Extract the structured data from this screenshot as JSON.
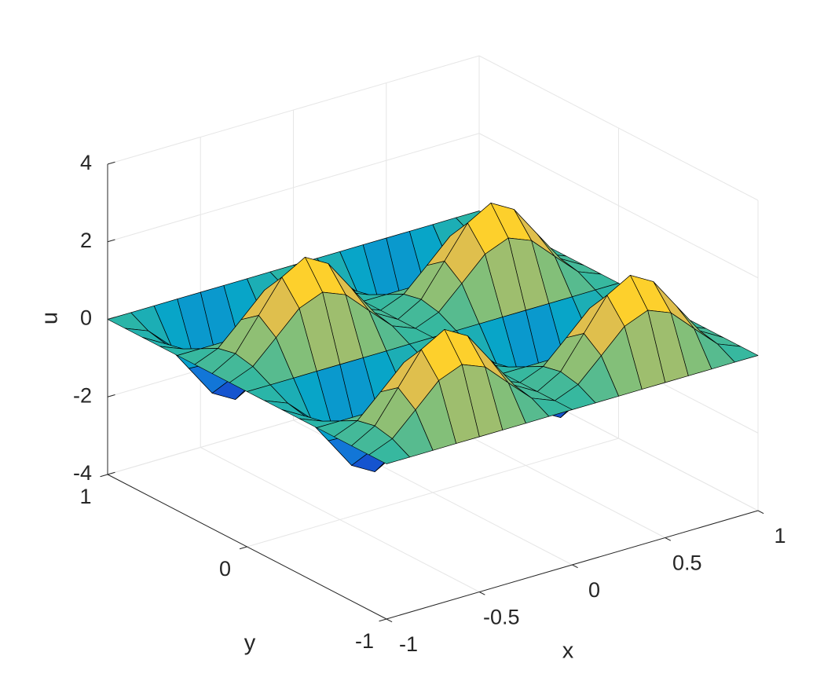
{
  "chart_data": {
    "type": "surface",
    "xlabel": "x",
    "ylabel": "y",
    "zlabel": "u",
    "x": [
      -1,
      -0.875,
      -0.75,
      -0.625,
      -0.5,
      -0.375,
      -0.25,
      -0.125,
      0,
      0.125,
      0.25,
      0.375,
      0.5,
      0.625,
      0.75,
      0.875,
      1
    ],
    "y": [
      -1,
      -0.875,
      -0.75,
      -0.625,
      -0.5,
      -0.375,
      -0.25,
      -0.125,
      0,
      0.125,
      0.25,
      0.375,
      0.5,
      0.625,
      0.75,
      0.875,
      1
    ],
    "z": [
      [
        0,
        0,
        0,
        0,
        0,
        0,
        0,
        0,
        0,
        0,
        0,
        0,
        0,
        0,
        0,
        0,
        0
      ],
      [
        0,
        0.24,
        0.81,
        1.39,
        1.63,
        1.39,
        0.81,
        0.24,
        0,
        0.24,
        0.81,
        1.39,
        1.63,
        1.39,
        0.81,
        0.24,
        0
      ],
      [
        0,
        0.34,
        1.15,
        1.96,
        2.3,
        1.96,
        1.15,
        0.34,
        0,
        0.34,
        1.15,
        1.96,
        2.3,
        1.96,
        1.15,
        0.34,
        0
      ],
      [
        0,
        0.24,
        0.81,
        1.39,
        1.63,
        1.39,
        0.81,
        0.24,
        0,
        0.24,
        0.81,
        1.39,
        1.63,
        1.39,
        0.81,
        0.24,
        0
      ],
      [
        0,
        0,
        0,
        0,
        0,
        0,
        0,
        0,
        0,
        0,
        0,
        0,
        0,
        0,
        0,
        0,
        0
      ],
      [
        0,
        -0.24,
        -0.81,
        -1.39,
        -1.63,
        -1.39,
        -0.81,
        -0.24,
        0,
        -0.24,
        -0.81,
        -1.39,
        -1.63,
        -1.39,
        -0.81,
        -0.24,
        0
      ],
      [
        0,
        -0.34,
        -1.15,
        -1.96,
        -2.3,
        -1.96,
        -1.15,
        -0.34,
        0,
        -0.34,
        -1.15,
        -1.96,
        -2.3,
        -1.96,
        -1.15,
        -0.34,
        0
      ],
      [
        0,
        -0.24,
        -0.81,
        -1.39,
        -1.63,
        -1.39,
        -0.81,
        -0.24,
        0,
        -0.24,
        -0.81,
        -1.39,
        -1.63,
        -1.39,
        -0.81,
        -0.24,
        0
      ],
      [
        0,
        0,
        0,
        0,
        0,
        0,
        0,
        0,
        0,
        0,
        0,
        0,
        0,
        0,
        0,
        0,
        0
      ],
      [
        0,
        0.24,
        0.81,
        1.39,
        1.63,
        1.39,
        0.81,
        0.24,
        0,
        0.24,
        0.81,
        1.39,
        1.63,
        1.39,
        0.81,
        0.24,
        0
      ],
      [
        0,
        0.34,
        1.15,
        1.96,
        2.3,
        1.96,
        1.15,
        0.34,
        0,
        0.34,
        1.15,
        1.96,
        2.3,
        1.96,
        1.15,
        0.34,
        0
      ],
      [
        0,
        0.24,
        0.81,
        1.39,
        1.63,
        1.39,
        0.81,
        0.24,
        0,
        0.24,
        0.81,
        1.39,
        1.63,
        1.39,
        0.81,
        0.24,
        0
      ],
      [
        0,
        0,
        0,
        0,
        0,
        0,
        0,
        0,
        0,
        0,
        0,
        0,
        0,
        0,
        0,
        0,
        0
      ],
      [
        0,
        -0.24,
        -0.81,
        -1.39,
        -1.63,
        -1.39,
        -0.81,
        -0.24,
        0,
        -0.24,
        -0.81,
        -1.39,
        -1.63,
        -1.39,
        -0.81,
        -0.24,
        0
      ],
      [
        0,
        -0.34,
        -1.15,
        -1.96,
        -2.3,
        -1.96,
        -1.15,
        -0.34,
        0,
        -0.34,
        -1.15,
        -1.96,
        -2.3,
        -1.96,
        -1.15,
        -0.34,
        0
      ],
      [
        0,
        -0.24,
        -0.81,
        -1.39,
        -1.63,
        -1.39,
        -0.81,
        -0.24,
        0,
        -0.24,
        -0.81,
        -1.39,
        -1.63,
        -1.39,
        -0.81,
        -0.24,
        0
      ],
      [
        0,
        0,
        0,
        0,
        0,
        0,
        0,
        0,
        0,
        0,
        0,
        0,
        0,
        0,
        0,
        0,
        0
      ]
    ],
    "xlim": [
      -1,
      1
    ],
    "ylim": [
      -1,
      1
    ],
    "zlim": [
      -4,
      4
    ],
    "xticks": [
      -1,
      -0.5,
      0,
      0.5,
      1
    ],
    "yticks": [
      -1,
      0,
      1
    ],
    "zticks": [
      -4,
      -2,
      0,
      2,
      4
    ],
    "grid": true,
    "colormap": [
      "#352a87",
      "#0f5cdd",
      "#1481d4",
      "#06a4ca",
      "#2eb7a4",
      "#87bf77",
      "#d1bb59",
      "#fec832",
      "#f9fb0e"
    ],
    "edgecolor": "#000000"
  }
}
